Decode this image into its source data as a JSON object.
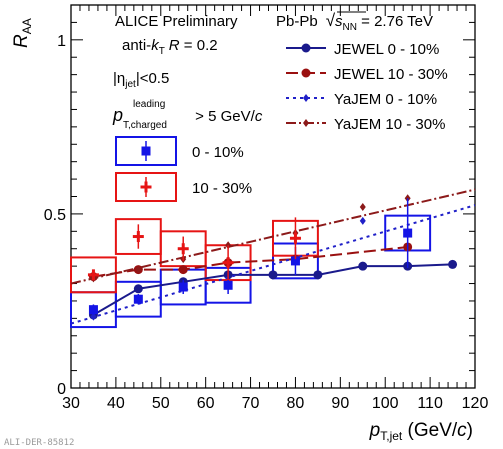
{
  "chart_data": {
    "type": "scatter",
    "xlabel_main": "p",
    "xlabel_sub": "T,jet",
    "xlabel_unit": " (GeV/",
    "xlabel_c": "c",
    "xlabel_close": ")",
    "ylabel_main": "R",
    "ylabel_sub": "AA",
    "xlim": [
      30,
      120
    ],
    "ylim": [
      0,
      1.1
    ],
    "x_ticks": [
      "30",
      "40",
      "50",
      "60",
      "70",
      "80",
      "90",
      "100",
      "110",
      "120"
    ],
    "y_ticks": [
      "0",
      "0.5",
      "1"
    ],
    "annotations": {
      "prelim": "ALICE Preliminary",
      "algo_prefix": "anti-",
      "algo_k": "k",
      "algo_ksub": "T",
      "algo_R": "R",
      "algo_val": " = 0.2",
      "system": "Pb-Pb",
      "sqrt": "s",
      "sqrt_sub": "NN",
      "energy": " = 2.76 TeV",
      "eta_open": "|η",
      "eta_sub": "jet",
      "eta_close": "|<0.5",
      "pt_p": "p",
      "pt_sup": "leading",
      "pt_sub": "T,charged",
      "pt_rest": " > 5 GeV/",
      "pt_c": "c"
    },
    "data_legend": [
      {
        "label": "0 - 10%",
        "color": "#1414e6"
      },
      {
        "label": "10 - 30%",
        "color": "#e61414"
      }
    ],
    "data_series": [
      {
        "label": "0 - 10%",
        "color": "#1414e6",
        "marker": "square",
        "points": [
          {
            "x": 35,
            "y": 0.225,
            "err": 0.015,
            "sys": 0.05
          },
          {
            "x": 45,
            "y": 0.255,
            "err": 0.015,
            "sys": 0.05
          },
          {
            "x": 55,
            "y": 0.29,
            "err": 0.02,
            "sys": 0.05
          },
          {
            "x": 65,
            "y": 0.295,
            "err": 0.025,
            "sys": 0.05
          },
          {
            "x": 80,
            "y": 0.365,
            "err": 0.04,
            "sys": 0.05
          },
          {
            "x": 105,
            "y": 0.445,
            "err": 0.1,
            "sys": 0.05
          }
        ]
      },
      {
        "label": "10 - 30%",
        "color": "#e61414",
        "marker": "cross",
        "points": [
          {
            "x": 35,
            "y": 0.325,
            "err": 0.015,
            "sys": 0.05
          },
          {
            "x": 45,
            "y": 0.435,
            "err": 0.035,
            "sys": 0.05
          },
          {
            "x": 55,
            "y": 0.4,
            "err": 0.035,
            "sys": 0.05
          },
          {
            "x": 65,
            "y": 0.36,
            "err": 0.05,
            "sys": 0.05
          },
          {
            "x": 80,
            "y": 0.43,
            "err": 0.06,
            "sys": 0.05
          }
        ]
      }
    ],
    "model_series": [
      {
        "name": "JEWEL  0 - 10%",
        "color": "#1a1a8c",
        "dash": "",
        "marker": "circle",
        "x": [
          35,
          45,
          55,
          65,
          75,
          85,
          95,
          105,
          115
        ],
        "y": [
          0.21,
          0.285,
          0.305,
          0.325,
          0.325,
          0.325,
          0.35,
          0.35,
          0.355
        ]
      },
      {
        "name": "JEWEL 10 - 30%",
        "color": "#9a1010",
        "dash": "12,5",
        "marker": "circle",
        "x": [
          35,
          45,
          55,
          65,
          80,
          105
        ],
        "y": [
          0.32,
          0.34,
          0.34,
          0.36,
          0.37,
          0.405
        ]
      },
      {
        "name": "YaJEM  0 - 10%",
        "color": "#2020c8",
        "dash": "3,4",
        "marker": "diamond",
        "x": [
          35,
          95
        ],
        "y": [
          0.205,
          0.48
        ],
        "curve": {
          "x": [
            30,
            120
          ],
          "y": [
            0.185,
            0.525
          ]
        }
      },
      {
        "name": "YaJEM 10 - 30%",
        "color": "#8c1a1a",
        "dash": "10,3,2,3",
        "marker": "diamond",
        "x": [
          35,
          45,
          55,
          65,
          80,
          95,
          105
        ],
        "y": [
          0.315,
          0.34,
          0.37,
          0.41,
          0.445,
          0.52,
          0.545
        ],
        "curve": {
          "x": [
            30,
            120
          ],
          "y": [
            0.3,
            0.57
          ]
        }
      }
    ]
  },
  "watermark": "ALI-DER-85812"
}
